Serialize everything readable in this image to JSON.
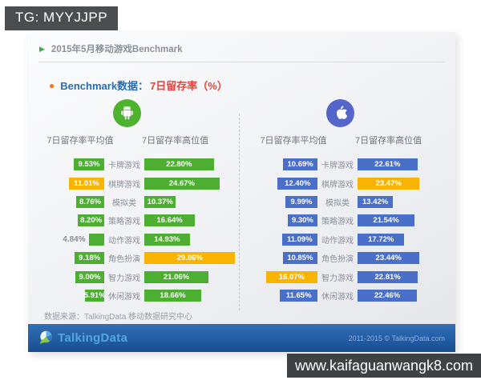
{
  "watermark_top": "TG: MYYJJPP",
  "watermark_bottom": "www.kaifaguanwangk8.com",
  "slide": {
    "title": "2015年5月移动游戏Benchmark",
    "subtitle_prefix": "Benchmark数据：",
    "subtitle_highlight": "7日留存率（%）",
    "source_note": "数据来源：TalkingData 移动数据研究中心",
    "footer": {
      "brand": "TalkingData",
      "copyright": "2011-2015 © TalkingData.com"
    }
  },
  "colors": {
    "highlight_orange": "#f8b400",
    "android_green": "#4caf32",
    "ios_blue": "#4a6fc9",
    "accent_blue": "#2a6cb3",
    "accent_red": "#e8403a",
    "bullet_orange": "#f0782a",
    "footer_blue": "#1f5499"
  },
  "chart_data": [
    {
      "type": "bar",
      "platform": "Android",
      "unit": "%",
      "color": "#4caf32",
      "icon_color": "#4db32e",
      "avg_header": "7日留存率平均值",
      "high_header": "7日留存率高位值",
      "categories": [
        "卡牌游戏",
        "棋牌游戏",
        "模拟类",
        "策略游戏",
        "动作游戏",
        "角色扮演",
        "智力游戏",
        "休闲游戏"
      ],
      "series": [
        {
          "name": "7日留存率平均值",
          "values": [
            9.53,
            11.01,
            8.76,
            8.2,
            4.84,
            9.18,
            9.0,
            5.91
          ],
          "highlight_index": 1
        },
        {
          "name": "7日留存率高位值",
          "values": [
            22.8,
            24.67,
            10.37,
            16.64,
            14.93,
            29.86,
            21.06,
            18.66
          ],
          "highlight_index": 5
        }
      ]
    },
    {
      "type": "bar",
      "platform": "iOS",
      "unit": "%",
      "color": "#4a6fc9",
      "icon_color": "#5566cb",
      "avg_header": "7日留存率平均值",
      "high_header": "7日留存率高位值",
      "categories": [
        "卡牌游戏",
        "棋牌游戏",
        "模拟类",
        "策略游戏",
        "动作游戏",
        "角色扮演",
        "智力游戏",
        "休闲游戏"
      ],
      "series": [
        {
          "name": "7日留存率平均值",
          "values": [
            10.69,
            12.4,
            9.99,
            9.3,
            11.09,
            10.85,
            16.07,
            11.65
          ],
          "highlight_index": 6
        },
        {
          "name": "7日留存率高位值",
          "values": [
            22.61,
            23.47,
            13.42,
            21.54,
            17.72,
            23.44,
            22.81,
            22.46
          ],
          "highlight_index": 1
        }
      ]
    }
  ]
}
